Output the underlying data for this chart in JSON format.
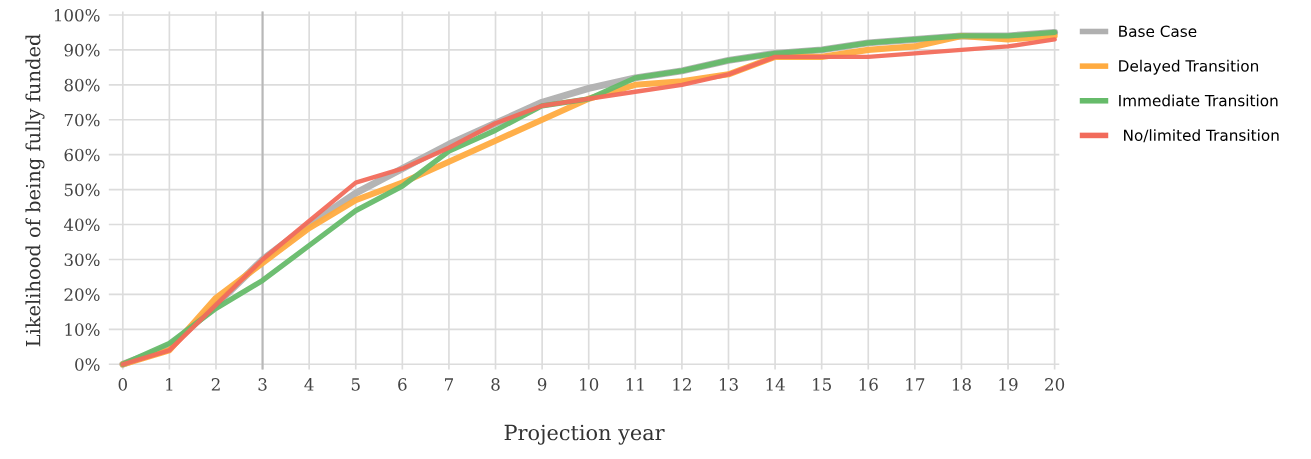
{
  "chart_data": {
    "type": "line",
    "xlabel": "Projection year",
    "ylabel": "Likelihood of being fully funded",
    "x": [
      0,
      1,
      2,
      3,
      4,
      5,
      6,
      7,
      8,
      9,
      10,
      11,
      12,
      13,
      14,
      15,
      16,
      17,
      18,
      19,
      20
    ],
    "series": [
      {
        "name": "Base Case",
        "color": "#b0b0b0",
        "values": [
          0,
          5,
          17,
          30,
          40,
          49,
          56,
          63,
          69,
          75,
          79,
          82,
          84,
          87,
          89,
          90,
          92,
          93,
          94,
          94,
          95
        ]
      },
      {
        "name": "Delayed Transition",
        "color": "#ffab40",
        "values": [
          0,
          4,
          19,
          29,
          39,
          47,
          52,
          58,
          64,
          70,
          76,
          80,
          81,
          83,
          88,
          88,
          90,
          91,
          94,
          93,
          94
        ]
      },
      {
        "name": "Immediate Transition",
        "color": "#66bb6a",
        "values": [
          0,
          6,
          16,
          24,
          34,
          44,
          51,
          61,
          67,
          74,
          76,
          82,
          84,
          87,
          89,
          90,
          92,
          93,
          94,
          94,
          95
        ]
      },
      {
        "name": " No/limited Transition",
        "color": "#f26b5b",
        "values": [
          0,
          4,
          17,
          30,
          41,
          52,
          56,
          62,
          69,
          74,
          76,
          78,
          80,
          83,
          88,
          88,
          88,
          89,
          90,
          91,
          93
        ]
      }
    ],
    "xlim": [
      -0.3,
      20.1
    ],
    "ylim": [
      -1.5,
      101
    ],
    "xticks": [
      0,
      1,
      2,
      3,
      4,
      5,
      6,
      7,
      8,
      9,
      10,
      11,
      12,
      13,
      14,
      15,
      16,
      17,
      18,
      19,
      20
    ],
    "yticks": [
      {
        "value": 0,
        "label": "0%"
      },
      {
        "value": 10,
        "label": "10%"
      },
      {
        "value": 20,
        "label": "20%"
      },
      {
        "value": 30,
        "label": "30%"
      },
      {
        "value": 40,
        "label": "40%"
      },
      {
        "value": 50,
        "label": "50%"
      },
      {
        "value": 60,
        "label": "60%"
      },
      {
        "value": 70,
        "label": "70%"
      },
      {
        "value": 80,
        "label": "80%"
      },
      {
        "value": 90,
        "label": "90%"
      },
      {
        "value": 100,
        "label": "100%"
      }
    ],
    "ref_lines": [
      {
        "axis": "x",
        "value": 3,
        "color": "#b8b8b8"
      }
    ],
    "grid": true,
    "legend": "right",
    "marker": "none",
    "line_style": "solid"
  }
}
